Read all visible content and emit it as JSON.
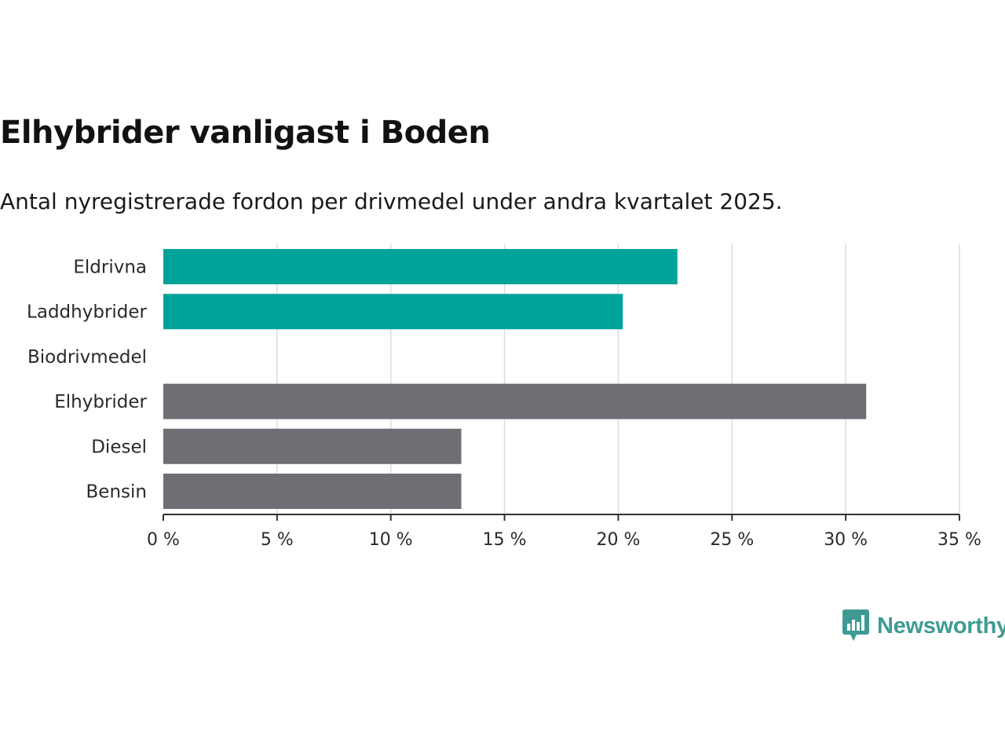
{
  "header": {
    "title": "Elhybrider vanligast i Boden",
    "subtitle": "Antal nyregistrerade fordon per drivmedel under andra kvartalet 2025."
  },
  "colors": {
    "highlight": "#00a39a",
    "default": "#6f6e74",
    "grid": "#dddddd",
    "axis": "#333333",
    "brand": "#3e9b93"
  },
  "chart_data": {
    "type": "bar",
    "orientation": "horizontal",
    "categories": [
      "Eldrivna",
      "Laddhybrider",
      "Biodrivmedel",
      "Elhybrider",
      "Diesel",
      "Bensin"
    ],
    "values": [
      22.6,
      20.2,
      0,
      30.9,
      13.1,
      13.1
    ],
    "bar_colors": [
      "#00a39a",
      "#00a39a",
      "#00a39a",
      "#6f6e74",
      "#6f6e74",
      "#6f6e74"
    ],
    "xlim": [
      0,
      35
    ],
    "x_ticks": [
      0,
      5,
      10,
      15,
      20,
      25,
      30,
      35
    ],
    "x_tick_labels": [
      "0 %",
      "5 %",
      "10 %",
      "15 %",
      "20 %",
      "25 %",
      "30 %",
      "35 %"
    ],
    "grid": "vertical",
    "title": "Elhybrider vanligast i Boden",
    "subtitle": "Antal nyregistrerade fordon per drivmedel under andra kvartalet 2025.",
    "xlabel": "",
    "ylabel": ""
  },
  "footer": {
    "brand": "Newsworthy",
    "logo_icon": "newsworthy-chart-icon"
  }
}
